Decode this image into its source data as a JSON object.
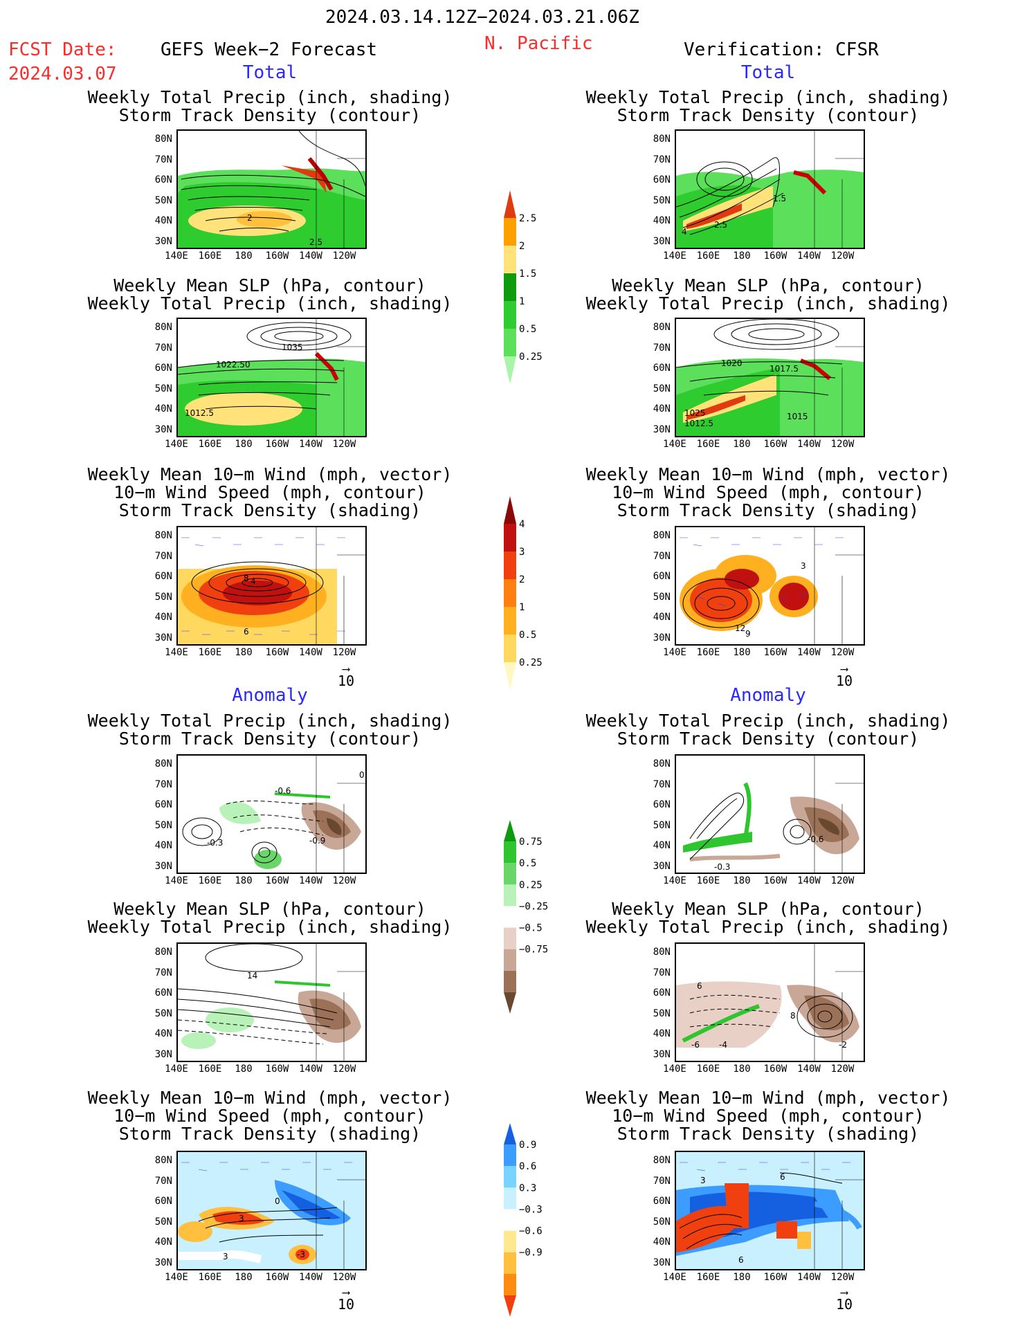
{
  "header": {
    "date_range": "2024.03.14.12Z−2024.03.21.06Z",
    "fcst_label": "FCST Date:",
    "fcst_date": "2024.03.07",
    "left_title": "GEFS Week−2 Forecast",
    "region": "N. Pacific",
    "right_title": "Verification: CFSR"
  },
  "sections": {
    "total": "Total",
    "anomaly": "Anomaly"
  },
  "titles": {
    "precip_track": "Weekly Total Precip (inch, shading)\nStorm Track Density (contour)",
    "slp_precip": "Weekly Mean SLP (hPa, contour)\nWeekly Total Precip (inch, shading)",
    "wind_track": "Weekly Mean 10−m Wind (mph, vector)\n10−m Wind Speed (mph, contour)\nStorm Track Density (shading)"
  },
  "axes": {
    "lat": [
      "80N",
      "70N",
      "60N",
      "50N",
      "40N",
      "30N"
    ],
    "lon": [
      "140E",
      "160E",
      "180",
      "160W",
      "140W",
      "120W"
    ]
  },
  "vector_ref": "10",
  "colorbars": {
    "precip_total": {
      "colors": [
        "#a8f5a8",
        "#5ce05c",
        "#2ecc2e",
        "#0f9b0f",
        "#ffe27a",
        "#ffa000",
        "#e03a10"
      ],
      "labels": [
        "0.25",
        "0.5",
        "1",
        "1.5",
        "2",
        "2.5"
      ]
    },
    "track_total": {
      "colors": [
        "#fff8c0",
        "#ffd860",
        "#ffb020",
        "#ff8010",
        "#f04010",
        "#c01010",
        "#8a0808"
      ],
      "labels": [
        "0.25",
        "0.5",
        "1",
        "2",
        "3",
        "4"
      ]
    },
    "precip_anom": {
      "colors": [
        "#68482e",
        "#9b7258",
        "#c9a797",
        "#e8d0c6",
        "#ffffff",
        "#b8f2b8",
        "#6ad66a",
        "#2ec52e",
        "#0e9a0e"
      ],
      "labels": [
        "0.75",
        "0.5",
        "0.25",
        "−0.25",
        "−0.5",
        "−0.75"
      ]
    },
    "track_anom": {
      "colors": [
        "#f04010",
        "#ff8c10",
        "#ffc040",
        "#ffe890",
        "#ffffff",
        "#c8f0ff",
        "#78d4ff",
        "#3c9cff",
        "#1460e0"
      ],
      "labels": [
        "0.9",
        "0.6",
        "0.3",
        "−0.3",
        "−0.6",
        "−0.9"
      ]
    }
  },
  "panel_labels": {
    "l1": [
      "2",
      "2.5"
    ],
    "r1": [
      "4",
      "2.5",
      "1.5"
    ],
    "l2": [
      "1035",
      "1022.50",
      "1012.5"
    ],
    "r2": [
      "1020",
      "1017.5",
      "1015",
      "1012.5",
      "1025"
    ],
    "l3": [
      "8",
      "4",
      "6"
    ],
    "r3": [
      "3",
      "12",
      "9"
    ],
    "l4": [
      "-0.6",
      "-0.3",
      "-0.9",
      "0"
    ],
    "r4": [
      "-0.6",
      "-0.3"
    ],
    "l5": [
      "14"
    ],
    "r5": [
      "6",
      "8",
      "-6",
      "-4",
      "-2"
    ],
    "l6": [
      "0",
      "3",
      "3",
      "-3"
    ],
    "r6": [
      "3",
      "6",
      "6"
    ]
  }
}
